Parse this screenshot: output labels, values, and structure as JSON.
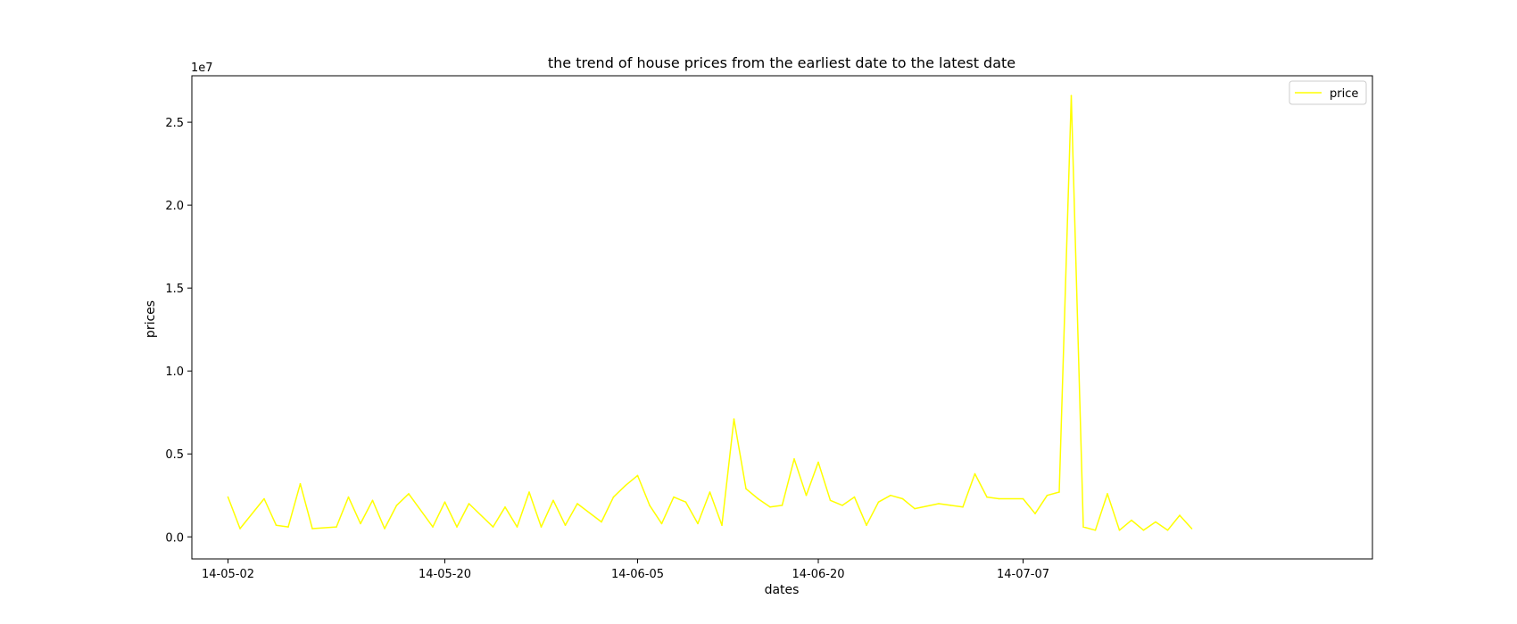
{
  "chart_data": {
    "type": "line",
    "title": "the trend of house prices from the earliest date to the latest date",
    "xlabel": "dates",
    "ylabel": "prices",
    "y_scale_label": "1e7",
    "x_tick_labels": [
      "14-05-02",
      "14-05-20",
      "14-06-05",
      "14-06-20",
      "14-07-07"
    ],
    "x_tick_dates": [
      "2014-05-02",
      "2014-05-20",
      "2014-06-05",
      "2014-06-20",
      "2014-07-07"
    ],
    "y_ticks": [
      0.0,
      0.5,
      1.0,
      1.5,
      2.0,
      2.5
    ],
    "y_tick_labels": [
      "0.0",
      "0.5",
      "1.0",
      "1.5",
      "2.0",
      "2.5"
    ],
    "xlim": [
      "2014-04-29",
      "2014-08-05"
    ],
    "ylim": [
      -1330000,
      27800000
    ],
    "legend": {
      "entries": [
        "price"
      ],
      "location": "upper right"
    },
    "grid": false,
    "series": [
      {
        "name": "price",
        "color": "#ffff00",
        "x": [
          "2014-05-02",
          "2014-05-03",
          "2014-05-05",
          "2014-05-06",
          "2014-05-07",
          "2014-05-08",
          "2014-05-09",
          "2014-05-11",
          "2014-05-12",
          "2014-05-13",
          "2014-05-14",
          "2014-05-15",
          "2014-05-16",
          "2014-05-17",
          "2014-05-19",
          "2014-05-20",
          "2014-05-21",
          "2014-05-22",
          "2014-05-24",
          "2014-05-25",
          "2014-05-26",
          "2014-05-27",
          "2014-05-28",
          "2014-05-29",
          "2014-05-30",
          "2014-05-31",
          "2014-06-02",
          "2014-06-03",
          "2014-06-04",
          "2014-06-05",
          "2014-06-06",
          "2014-06-07",
          "2014-06-08",
          "2014-06-09",
          "2014-06-10",
          "2014-06-11",
          "2014-06-12",
          "2014-06-13",
          "2014-06-14",
          "2014-06-15",
          "2014-06-16",
          "2014-06-17",
          "2014-06-18",
          "2014-06-19",
          "2014-06-20",
          "2014-06-21",
          "2014-06-22",
          "2014-06-23",
          "2014-06-24",
          "2014-06-25",
          "2014-06-26",
          "2014-06-27",
          "2014-06-28",
          "2014-06-30",
          "2014-07-01",
          "2014-07-02",
          "2014-07-03",
          "2014-07-04",
          "2014-07-05",
          "2014-07-07",
          "2014-07-08",
          "2014-07-09",
          "2014-07-10",
          "2014-07-11",
          "2014-07-12",
          "2014-07-13",
          "2014-07-14",
          "2014-07-15",
          "2014-07-16",
          "2014-07-17",
          "2014-07-18",
          "2014-07-19",
          "2014-07-20",
          "2014-07-21"
        ],
        "values": [
          2400000,
          500000,
          2300000,
          700000,
          600000,
          3200000,
          500000,
          600000,
          2400000,
          800000,
          2200000,
          500000,
          1900000,
          2600000,
          600000,
          2100000,
          600000,
          2000000,
          600000,
          1800000,
          600000,
          2700000,
          600000,
          2200000,
          700000,
          2000000,
          900000,
          2400000,
          3100000,
          3700000,
          1900000,
          800000,
          2400000,
          2100000,
          800000,
          2700000,
          700000,
          7100000,
          2900000,
          2300000,
          1800000,
          1900000,
          4700000,
          2500000,
          4500000,
          2200000,
          1900000,
          2400000,
          700000,
          2100000,
          2500000,
          2300000,
          1700000,
          2000000,
          1900000,
          1800000,
          3800000,
          2400000,
          2300000,
          2300000,
          1400000,
          2500000,
          2700000,
          26600000,
          600000,
          400000,
          2600000,
          400000,
          1000000,
          400000,
          900000,
          400000,
          1300000,
          500000
        ]
      }
    ]
  }
}
